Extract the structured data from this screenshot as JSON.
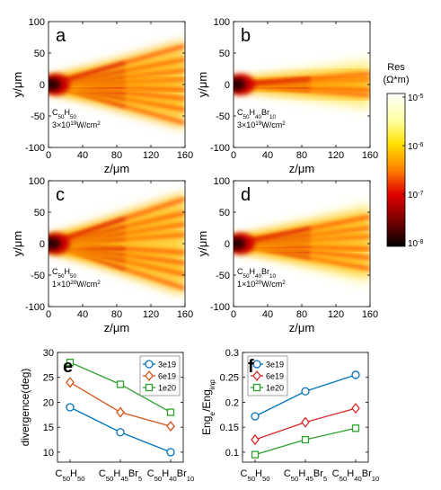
{
  "colorbar": {
    "title_line1": "Res",
    "title_line2": "(Ω*m)",
    "ticks": [
      "10",
      "10",
      "10",
      "10"
    ],
    "tick_exponents": [
      "-5",
      "-6",
      "-7",
      "-8"
    ]
  },
  "chart_data": [
    {
      "type": "heatmap",
      "panel": "a",
      "xlabel": "z/μm",
      "ylabel": "y/μm",
      "xlim": [
        0,
        160
      ],
      "ylim": [
        -100,
        100
      ],
      "xticks": [
        "0",
        "40",
        "80",
        "120",
        "160"
      ],
      "yticks": [
        "100",
        "50",
        "0",
        "-50",
        "-100"
      ],
      "material_main": "C",
      "material_parts": [
        [
          "C",
          "50"
        ],
        [
          "H",
          "50"
        ]
      ],
      "intensity_base": "3×10",
      "intensity_exp": "19",
      "intensity_unit": "W/cm",
      "intensity_unit_exp": "2",
      "jet_angles_deg": [
        -21,
        -14,
        -8,
        -3,
        3,
        8,
        14,
        21
      ],
      "envelope_halfwidth_at_160": 65,
      "colorscale_log": [
        -8,
        -5
      ]
    },
    {
      "type": "heatmap",
      "panel": "b",
      "xlabel": "z/μm",
      "ylabel": "y/μm",
      "xlim": [
        0,
        160
      ],
      "ylim": [
        -100,
        100
      ],
      "xticks": [
        "0",
        "40",
        "80",
        "120",
        "160"
      ],
      "yticks": [
        "100",
        "50",
        "0",
        "-50",
        "-100"
      ],
      "material_parts": [
        [
          "C",
          "50"
        ],
        [
          "H",
          "40"
        ],
        [
          "Br",
          "10"
        ]
      ],
      "intensity_base": "3×10",
      "intensity_exp": "19",
      "intensity_unit": "W/cm",
      "intensity_unit_exp": "2",
      "jet_angles_deg": [
        -6,
        -3,
        0,
        3,
        6
      ],
      "envelope_halfwidth_at_160": 42,
      "colorscale_log": [
        -8,
        -5
      ]
    },
    {
      "type": "heatmap",
      "panel": "c",
      "xlabel": "z/μm",
      "ylabel": "y/μm",
      "xlim": [
        0,
        160
      ],
      "ylim": [
        -100,
        100
      ],
      "xticks": [
        "0",
        "40",
        "80",
        "120",
        "160"
      ],
      "yticks": [
        "100",
        "50",
        "0",
        "-50",
        "-100"
      ],
      "material_parts": [
        [
          "C",
          "50"
        ],
        [
          "H",
          "50"
        ]
      ],
      "intensity_base": "1×10",
      "intensity_exp": "20",
      "intensity_unit": "W/cm",
      "intensity_unit_exp": "2",
      "jet_angles_deg": [
        -24,
        -17,
        -11,
        -5,
        0,
        5,
        11,
        17,
        24
      ],
      "envelope_halfwidth_at_160": 82,
      "colorscale_log": [
        -8,
        -5
      ]
    },
    {
      "type": "heatmap",
      "panel": "d",
      "xlabel": "z/μm",
      "ylabel": "y/μm",
      "xlim": [
        0,
        160
      ],
      "ylim": [
        -100,
        100
      ],
      "xticks": [
        "0",
        "40",
        "80",
        "120",
        "160"
      ],
      "yticks": [
        "100",
        "50",
        "0",
        "-50",
        "-100"
      ],
      "material_parts": [
        [
          "C",
          "50"
        ],
        [
          "H",
          "40"
        ],
        [
          "Br",
          "10"
        ]
      ],
      "intensity_base": "1×10",
      "intensity_exp": "20",
      "intensity_unit": "W/cm",
      "intensity_unit_exp": "2",
      "jet_angles_deg": [
        -14,
        -8,
        -3,
        0,
        4,
        9,
        15
      ],
      "envelope_halfwidth_at_160": 68,
      "colorscale_log": [
        -8,
        -5
      ]
    },
    {
      "type": "line",
      "panel": "e",
      "ylabel": "divergence(deg)",
      "ylim": [
        8,
        30
      ],
      "yticks": [
        10,
        15,
        20,
        25,
        30
      ],
      "categories": [
        [
          [
            "C",
            "50"
          ],
          [
            "H",
            "50"
          ]
        ],
        [
          [
            "C",
            "50"
          ],
          [
            "H",
            "45"
          ],
          [
            "Br",
            "5"
          ]
        ],
        [
          [
            "C",
            "50"
          ],
          [
            "H",
            "40"
          ],
          [
            "Br",
            "10"
          ]
        ]
      ],
      "series": [
        {
          "name": "3e19",
          "values": [
            19,
            14,
            10
          ],
          "color": "#0072BD",
          "marker": "circle"
        },
        {
          "name": "6e19",
          "values": [
            24,
            18,
            15.2
          ],
          "color": "#D95319",
          "marker": "diamond"
        },
        {
          "name": "1e20",
          "values": [
            28,
            23.6,
            18
          ],
          "color": "#2CA02C",
          "marker": "square"
        }
      ],
      "legend": "top-right",
      "grid": false
    },
    {
      "type": "line",
      "panel": "f",
      "ylabel_main": "Eng",
      "ylabel_sub1": "e",
      "ylabel_mid": "/Eng",
      "ylabel_sub2": "inp",
      "ylim": [
        0.08,
        0.3
      ],
      "yticks": [
        0.1,
        0.15,
        0.2,
        0.25,
        0.3
      ],
      "categories": [
        [
          [
            "C",
            "50"
          ],
          [
            "H",
            "50"
          ]
        ],
        [
          [
            "C",
            "50"
          ],
          [
            "H",
            "45"
          ],
          [
            "Br",
            "5"
          ]
        ],
        [
          [
            "C",
            "50"
          ],
          [
            "H",
            "40"
          ],
          [
            "Br",
            "10"
          ]
        ]
      ],
      "series": [
        {
          "name": "3e19",
          "values": [
            0.172,
            0.222,
            0.255
          ],
          "color": "#0072BD",
          "marker": "circle"
        },
        {
          "name": "6e19",
          "values": [
            0.125,
            0.16,
            0.188
          ],
          "color": "#D62728",
          "marker": "diamond"
        },
        {
          "name": "1e20",
          "values": [
            0.095,
            0.125,
            0.148
          ],
          "color": "#2CA02C",
          "marker": "square"
        }
      ],
      "legend": "top-left",
      "grid": false
    }
  ]
}
